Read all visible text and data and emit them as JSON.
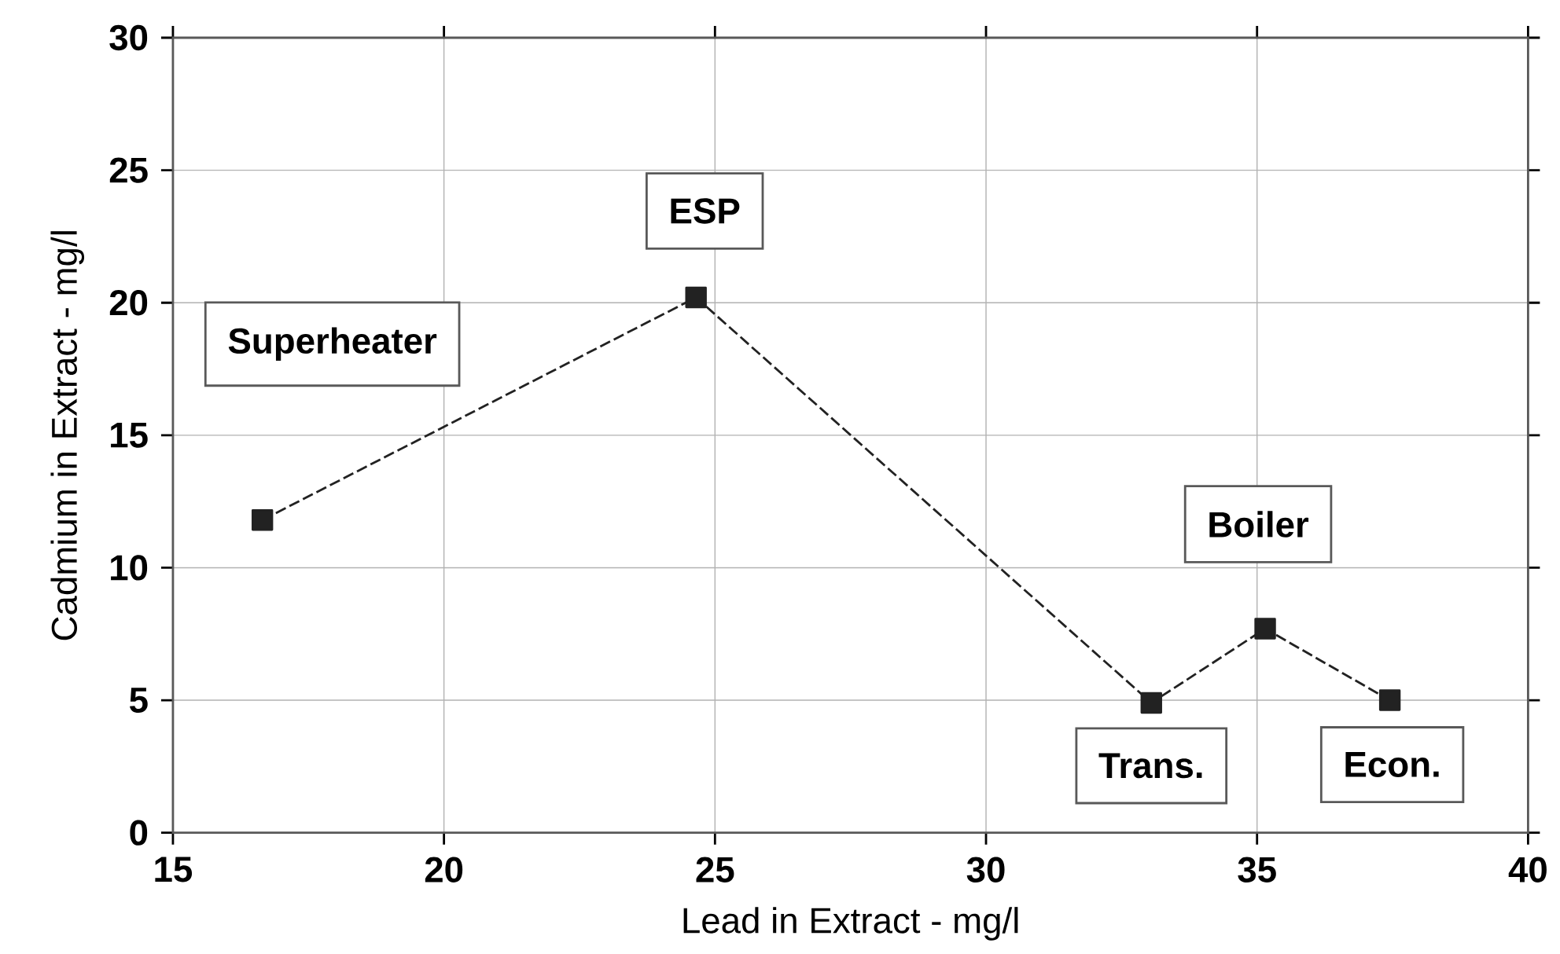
{
  "chart_data": {
    "type": "line",
    "xlabel": "Lead in Extract - mg/l",
    "ylabel": "Cadmium in Extract - mg/l",
    "x": [
      16.65,
      24.65,
      33.05,
      35.15,
      37.45
    ],
    "series": [
      {
        "color": "#222222",
        "values": [
          11.8,
          20.2,
          4.9,
          7.7,
          5.0
        ]
      }
    ],
    "xlim": [
      15,
      40
    ],
    "xticks": [
      15,
      20,
      25,
      30,
      35,
      40
    ],
    "ylim": [
      0,
      30
    ],
    "yticks": [
      0,
      5,
      10,
      15,
      20,
      25,
      30
    ],
    "grid": true,
    "marker": "square",
    "line_style": "dashed",
    "annotations": [
      "Superheater",
      "ESP",
      "Trans.",
      "Boiler",
      "Econ."
    ]
  }
}
